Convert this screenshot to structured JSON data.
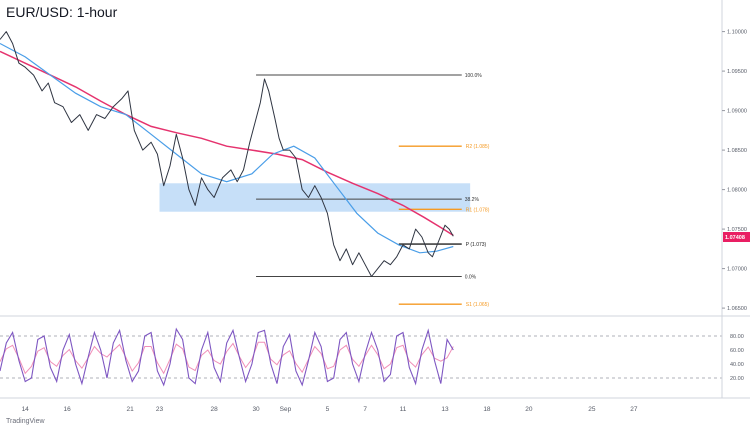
{
  "chart_data": {
    "type": "line",
    "title": "EUR/USD: 1-hour",
    "watermark": "TradingView",
    "price_axis": {
      "ylim": [
        1.064,
        1.104
      ],
      "ticks": [
        {
          "value": 1.1,
          "label": "1.10000"
        },
        {
          "value": 1.095,
          "label": "1.09500"
        },
        {
          "value": 1.09,
          "label": "1.09000"
        },
        {
          "value": 1.085,
          "label": "1.08500"
        },
        {
          "value": 1.08,
          "label": "1.08000"
        },
        {
          "value": 1.075,
          "label": "1.07500"
        },
        {
          "value": 1.07,
          "label": "1.07000"
        },
        {
          "value": 1.065,
          "label": "1.06500"
        }
      ]
    },
    "current_price": {
      "value": 1.074,
      "label": "1.07408",
      "color": "#e91e63"
    },
    "x_axis": {
      "xlim": [
        10.4,
        27.6
      ],
      "ticks": [
        {
          "x": 11,
          "label": "14"
        },
        {
          "x": 12,
          "label": "16"
        },
        {
          "x": 13.5,
          "label": "21"
        },
        {
          "x": 14.2,
          "label": "23"
        },
        {
          "x": 15.5,
          "label": "28"
        },
        {
          "x": 16.5,
          "label": "30"
        },
        {
          "x": 17.2,
          "label": "Sep"
        },
        {
          "x": 18.2,
          "label": "5"
        },
        {
          "x": 19.1,
          "label": "7"
        },
        {
          "x": 20,
          "label": "11"
        },
        {
          "x": 21,
          "label": "13"
        },
        {
          "x": 22,
          "label": "18"
        },
        {
          "x": 23,
          "label": "20"
        },
        {
          "x": 24.5,
          "label": "25"
        },
        {
          "x": 25.5,
          "label": "27"
        }
      ]
    },
    "price_series": {
      "name": "",
      "color": "#2f3542",
      "points": [
        [
          10.4,
          1.099
        ],
        [
          10.55,
          1.1
        ],
        [
          10.7,
          1.0985
        ],
        [
          10.85,
          1.096
        ],
        [
          11.0,
          1.0955
        ],
        [
          11.2,
          1.0945
        ],
        [
          11.4,
          1.0925
        ],
        [
          11.55,
          1.0935
        ],
        [
          11.7,
          1.091
        ],
        [
          11.9,
          1.0905
        ],
        [
          12.1,
          1.0885
        ],
        [
          12.3,
          1.0895
        ],
        [
          12.5,
          1.0875
        ],
        [
          12.7,
          1.0895
        ],
        [
          12.9,
          1.089
        ],
        [
          13.1,
          1.0905
        ],
        [
          13.3,
          1.0915
        ],
        [
          13.45,
          1.0925
        ],
        [
          13.6,
          1.0875
        ],
        [
          13.8,
          1.085
        ],
        [
          14.0,
          1.086
        ],
        [
          14.15,
          1.0845
        ],
        [
          14.3,
          1.0805
        ],
        [
          14.45,
          1.083
        ],
        [
          14.6,
          1.087
        ],
        [
          14.75,
          1.084
        ],
        [
          14.9,
          1.08
        ],
        [
          15.05,
          1.078
        ],
        [
          15.2,
          1.0815
        ],
        [
          15.35,
          1.08
        ],
        [
          15.5,
          1.079
        ],
        [
          15.7,
          1.0815
        ],
        [
          15.9,
          1.0825
        ],
        [
          16.05,
          1.081
        ],
        [
          16.2,
          1.0825
        ],
        [
          16.35,
          1.086
        ],
        [
          16.5,
          1.089
        ],
        [
          16.6,
          1.091
        ],
        [
          16.7,
          1.094
        ],
        [
          16.8,
          1.0925
        ],
        [
          16.95,
          1.089
        ],
        [
          17.05,
          1.0865
        ],
        [
          17.15,
          1.085
        ],
        [
          17.3,
          1.085
        ],
        [
          17.45,
          1.084
        ],
        [
          17.6,
          1.08
        ],
        [
          17.75,
          1.079
        ],
        [
          17.9,
          1.0805
        ],
        [
          18.05,
          1.079
        ],
        [
          18.2,
          1.077
        ],
        [
          18.35,
          1.073
        ],
        [
          18.5,
          1.071
        ],
        [
          18.65,
          1.0725
        ],
        [
          18.8,
          1.0705
        ],
        [
          18.95,
          1.072
        ],
        [
          19.1,
          1.0705
        ],
        [
          19.25,
          1.069
        ],
        [
          19.4,
          1.07
        ],
        [
          19.55,
          1.071
        ],
        [
          19.7,
          1.0705
        ],
        [
          19.85,
          1.0715
        ],
        [
          20.0,
          1.073
        ],
        [
          20.15,
          1.0725
        ],
        [
          20.3,
          1.075
        ],
        [
          20.45,
          1.074
        ],
        [
          20.6,
          1.072
        ],
        [
          20.7,
          1.0715
        ],
        [
          20.85,
          1.0735
        ],
        [
          21.0,
          1.0755
        ],
        [
          21.1,
          1.075
        ],
        [
          21.2,
          1.0741
        ]
      ]
    },
    "ema_red": {
      "name": "",
      "color": "#e5336e",
      "points": [
        [
          10.4,
          1.0975
        ],
        [
          11.0,
          1.096
        ],
        [
          11.6,
          1.0945
        ],
        [
          12.2,
          1.093
        ],
        [
          12.8,
          1.0912
        ],
        [
          13.4,
          1.0895
        ],
        [
          14.0,
          1.088
        ],
        [
          14.6,
          1.0872
        ],
        [
          15.2,
          1.0865
        ],
        [
          15.8,
          1.0855
        ],
        [
          16.4,
          1.085
        ],
        [
          17.0,
          1.0845
        ],
        [
          17.6,
          1.0838
        ],
        [
          18.2,
          1.0822
        ],
        [
          18.8,
          1.0808
        ],
        [
          19.4,
          1.0795
        ],
        [
          20.0,
          1.078
        ],
        [
          20.5,
          1.0765
        ],
        [
          20.9,
          1.0752
        ],
        [
          21.2,
          1.0742
        ]
      ]
    },
    "ema_blue": {
      "name": "",
      "color": "#4a9ee8",
      "points": [
        [
          10.4,
          1.0985
        ],
        [
          11.0,
          1.0968
        ],
        [
          11.6,
          1.0945
        ],
        [
          12.2,
          1.0922
        ],
        [
          12.8,
          1.0905
        ],
        [
          13.4,
          1.0895
        ],
        [
          14.0,
          1.087
        ],
        [
          14.6,
          1.0845
        ],
        [
          15.2,
          1.082
        ],
        [
          15.8,
          1.081
        ],
        [
          16.4,
          1.082
        ],
        [
          16.9,
          1.0845
        ],
        [
          17.4,
          1.0855
        ],
        [
          17.9,
          1.084
        ],
        [
          18.4,
          1.0805
        ],
        [
          18.9,
          1.077
        ],
        [
          19.4,
          1.0745
        ],
        [
          19.9,
          1.073
        ],
        [
          20.4,
          1.072
        ],
        [
          20.8,
          1.0722
        ],
        [
          21.2,
          1.0728
        ]
      ]
    },
    "zone": {
      "from_x": 14.2,
      "to_x": 21.6,
      "y_low": 1.0772,
      "y_high": 1.0808,
      "color": "#bcd9f7"
    },
    "fibonacci": [
      {
        "label": "100.0%",
        "value": 1.0945,
        "from_x": 16.5,
        "to_x": 21.4
      },
      {
        "label": "38.2%",
        "value": 1.0788,
        "from_x": 16.5,
        "to_x": 21.4
      },
      {
        "label": "0.0%",
        "value": 1.069,
        "from_x": 16.5,
        "to_x": 21.4
      }
    ],
    "pivots": [
      {
        "label": "R2 (1.085)",
        "value": 1.0855,
        "from_x": 19.9,
        "to_x": 21.4,
        "color": "#f59a23"
      },
      {
        "label": "R1 (1.078)",
        "value": 1.0775,
        "from_x": 19.9,
        "to_x": 21.4,
        "color": "#f59a23"
      },
      {
        "label": "P (1.073)",
        "value": 1.0731,
        "from_x": 19.9,
        "to_x": 21.4,
        "color": "#222222"
      },
      {
        "label": "S1 (1.065)",
        "value": 1.0655,
        "from_x": 19.9,
        "to_x": 21.4,
        "color": "#f59a23"
      }
    ],
    "oscillator": {
      "ylim": [
        0,
        100
      ],
      "levels": [
        80,
        20
      ],
      "ticks": [
        {
          "value": 80,
          "label": "80.00"
        },
        {
          "value": 60,
          "label": "60.00"
        },
        {
          "value": 40,
          "label": "40.00"
        },
        {
          "value": 20,
          "label": "20.00"
        }
      ],
      "k_color": "#7e57c2",
      "d_color": "#f08fb8",
      "k": [
        [
          10.4,
          30
        ],
        [
          10.55,
          70
        ],
        [
          10.7,
          85
        ],
        [
          10.85,
          45
        ],
        [
          11.0,
          15
        ],
        [
          11.15,
          20
        ],
        [
          11.3,
          75
        ],
        [
          11.45,
          80
        ],
        [
          11.6,
          35
        ],
        [
          11.75,
          15
        ],
        [
          11.9,
          60
        ],
        [
          12.05,
          82
        ],
        [
          12.2,
          40
        ],
        [
          12.35,
          12
        ],
        [
          12.5,
          50
        ],
        [
          12.65,
          85
        ],
        [
          12.8,
          60
        ],
        [
          12.95,
          20
        ],
        [
          13.1,
          70
        ],
        [
          13.25,
          88
        ],
        [
          13.4,
          45
        ],
        [
          13.55,
          15
        ],
        [
          13.7,
          30
        ],
        [
          13.85,
          80
        ],
        [
          14.0,
          85
        ],
        [
          14.15,
          30
        ],
        [
          14.3,
          10
        ],
        [
          14.45,
          40
        ],
        [
          14.6,
          90
        ],
        [
          14.75,
          75
        ],
        [
          14.9,
          20
        ],
        [
          15.05,
          12
        ],
        [
          15.2,
          60
        ],
        [
          15.35,
          85
        ],
        [
          15.5,
          35
        ],
        [
          15.65,
          15
        ],
        [
          15.8,
          70
        ],
        [
          15.95,
          88
        ],
        [
          16.1,
          50
        ],
        [
          16.25,
          15
        ],
        [
          16.4,
          40
        ],
        [
          16.55,
          85
        ],
        [
          16.7,
          88
        ],
        [
          16.85,
          40
        ],
        [
          17.0,
          12
        ],
        [
          17.15,
          65
        ],
        [
          17.3,
          82
        ],
        [
          17.45,
          30
        ],
        [
          17.6,
          10
        ],
        [
          17.75,
          45
        ],
        [
          17.9,
          85
        ],
        [
          18.05,
          65
        ],
        [
          18.2,
          15
        ],
        [
          18.35,
          20
        ],
        [
          18.5,
          75
        ],
        [
          18.65,
          85
        ],
        [
          18.8,
          40
        ],
        [
          18.95,
          15
        ],
        [
          19.1,
          55
        ],
        [
          19.25,
          85
        ],
        [
          19.4,
          60
        ],
        [
          19.55,
          15
        ],
        [
          19.7,
          25
        ],
        [
          19.85,
          80
        ],
        [
          20.0,
          85
        ],
        [
          20.15,
          35
        ],
        [
          20.3,
          12
        ],
        [
          20.45,
          60
        ],
        [
          20.6,
          88
        ],
        [
          20.75,
          45
        ],
        [
          20.9,
          12
        ],
        [
          21.05,
          75
        ],
        [
          21.2,
          60
        ]
      ]
    }
  }
}
